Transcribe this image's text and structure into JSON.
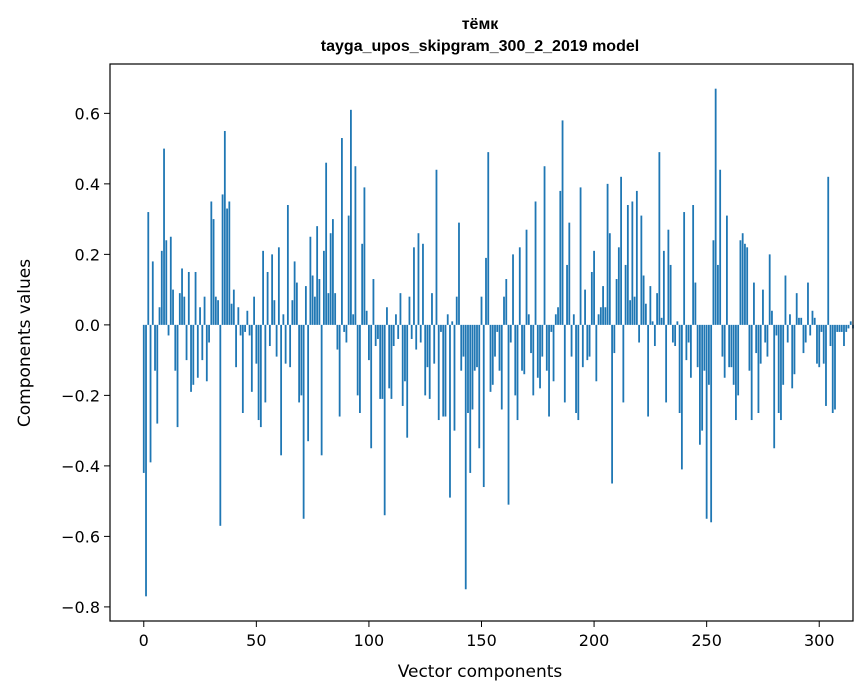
{
  "chart_data": {
    "type": "bar",
    "title_line1": "тёмк",
    "title_line2": "tayga_upos_skipgram_300_2_2019 model",
    "xlabel": "Vector components",
    "ylabel": "Components values",
    "xlim": [
      -15,
      315
    ],
    "ylim": [
      -0.84,
      0.74
    ],
    "xticks": [
      {
        "value": 0,
        "label": "0"
      },
      {
        "value": 50,
        "label": "50"
      },
      {
        "value": 100,
        "label": "100"
      },
      {
        "value": 150,
        "label": "150"
      },
      {
        "value": 200,
        "label": "200"
      },
      {
        "value": 250,
        "label": "250"
      },
      {
        "value": 300,
        "label": "300"
      }
    ],
    "yticks": [
      {
        "value": -0.8,
        "label": "−0.8"
      },
      {
        "value": -0.6,
        "label": "−0.6"
      },
      {
        "value": -0.4,
        "label": "−0.4"
      },
      {
        "value": -0.2,
        "label": "−0.2"
      },
      {
        "value": 0.0,
        "label": "0.0"
      },
      {
        "value": 0.2,
        "label": "0.2"
      },
      {
        "value": 0.4,
        "label": "0.4"
      },
      {
        "value": 0.6,
        "label": "0.6"
      }
    ],
    "bar_color": "#1f77b4",
    "grid": false,
    "values": [
      -0.42,
      -0.77,
      0.32,
      -0.39,
      0.18,
      -0.13,
      -0.28,
      0.05,
      0.21,
      0.5,
      0.24,
      -0.03,
      0.25,
      0.1,
      -0.13,
      -0.29,
      0.09,
      0.16,
      0.08,
      -0.1,
      0.15,
      -0.19,
      -0.17,
      0.15,
      -0.15,
      0.05,
      -0.1,
      0.08,
      -0.16,
      -0.05,
      0.35,
      0.3,
      0.08,
      0.07,
      -0.57,
      0.37,
      0.55,
      0.33,
      0.35,
      0.06,
      0.1,
      -0.12,
      0.05,
      -0.03,
      -0.25,
      -0.02,
      0.04,
      -0.03,
      -0.19,
      0.08,
      -0.11,
      -0.27,
      -0.29,
      0.21,
      -0.22,
      0.15,
      -0.06,
      0.2,
      0.07,
      -0.09,
      0.22,
      -0.37,
      0.03,
      -0.11,
      0.34,
      -0.12,
      0.07,
      0.18,
      0.12,
      -0.22,
      -0.2,
      -0.55,
      0.11,
      -0.33,
      0.25,
      0.14,
      0.08,
      0.28,
      0.13,
      -0.37,
      0.21,
      0.46,
      0.09,
      0.26,
      0.3,
      0.09,
      -0.07,
      -0.26,
      0.53,
      -0.02,
      -0.05,
      0.31,
      0.61,
      0.03,
      0.45,
      -0.2,
      -0.25,
      0.23,
      0.39,
      0.04,
      -0.1,
      -0.35,
      0.13,
      -0.06,
      -0.04,
      -0.21,
      -0.21,
      -0.54,
      0.05,
      -0.18,
      -0.21,
      -0.06,
      0.03,
      -0.04,
      0.09,
      -0.23,
      -0.16,
      -0.32,
      0.08,
      -0.04,
      0.22,
      -0.07,
      0.26,
      -0.05,
      0.23,
      -0.2,
      -0.12,
      -0.21,
      0.09,
      -0.11,
      0.44,
      -0.27,
      -0.02,
      -0.26,
      -0.26,
      0.03,
      -0.49,
      0.01,
      -0.3,
      0.08,
      0.29,
      -0.13,
      -0.09,
      -0.75,
      -0.25,
      -0.42,
      -0.24,
      -0.13,
      -0.12,
      -0.35,
      0.08,
      -0.46,
      0.19,
      0.49,
      -0.19,
      -0.17,
      -0.09,
      -0.02,
      -0.13,
      -0.24,
      0.08,
      0.13,
      -0.51,
      -0.05,
      0.2,
      -0.2,
      -0.27,
      0.22,
      -0.13,
      -0.14,
      0.27,
      0.03,
      -0.08,
      -0.2,
      0.35,
      -0.15,
      -0.18,
      -0.09,
      0.45,
      -0.13,
      -0.26,
      -0.02,
      -0.16,
      0.03,
      0.05,
      0.38,
      0.58,
      -0.22,
      0.17,
      0.29,
      -0.09,
      0.03,
      -0.25,
      -0.27,
      0.39,
      -0.12,
      0.1,
      -0.1,
      -0.09,
      0.15,
      0.21,
      -0.16,
      0.03,
      0.05,
      0.11,
      0.05,
      0.4,
      0.26,
      -0.45,
      -0.08,
      0.13,
      0.22,
      0.42,
      -0.22,
      0.17,
      0.34,
      0.07,
      0.35,
      0.08,
      0.38,
      -0.05,
      0.31,
      0.14,
      0.06,
      -0.26,
      0.11,
      0.01,
      -0.06,
      0.09,
      0.49,
      0.02,
      0.21,
      -0.22,
      0.27,
      0.17,
      -0.05,
      -0.06,
      0.01,
      -0.25,
      -0.41,
      0.32,
      -0.1,
      -0.05,
      -0.15,
      0.34,
      0.12,
      -0.12,
      -0.34,
      -0.3,
      -0.13,
      -0.55,
      -0.17,
      -0.56,
      0.24,
      0.67,
      0.17,
      0.44,
      -0.09,
      -0.15,
      0.31,
      -0.12,
      -0.12,
      -0.17,
      -0.27,
      -0.2,
      0.24,
      0.26,
      0.23,
      0.22,
      -0.13,
      -0.27,
      0.12,
      -0.08,
      -0.25,
      -0.11,
      0.1,
      -0.05,
      -0.09,
      0.2,
      0.04,
      -0.35,
      -0.03,
      -0.25,
      -0.27,
      -0.17,
      0.14,
      -0.05,
      0.03,
      -0.18,
      -0.14,
      0.09,
      0.02,
      0.02,
      -0.08,
      -0.05,
      0.12,
      -0.03,
      0.04,
      0.02,
      -0.11,
      -0.12,
      -0.02,
      -0.11,
      -0.23,
      0.42,
      -0.06,
      -0.25,
      -0.24,
      -0.02,
      -0.02,
      -0.02,
      -0.06,
      -0.02,
      -0.01,
      0.01,
      -0.01
    ]
  }
}
